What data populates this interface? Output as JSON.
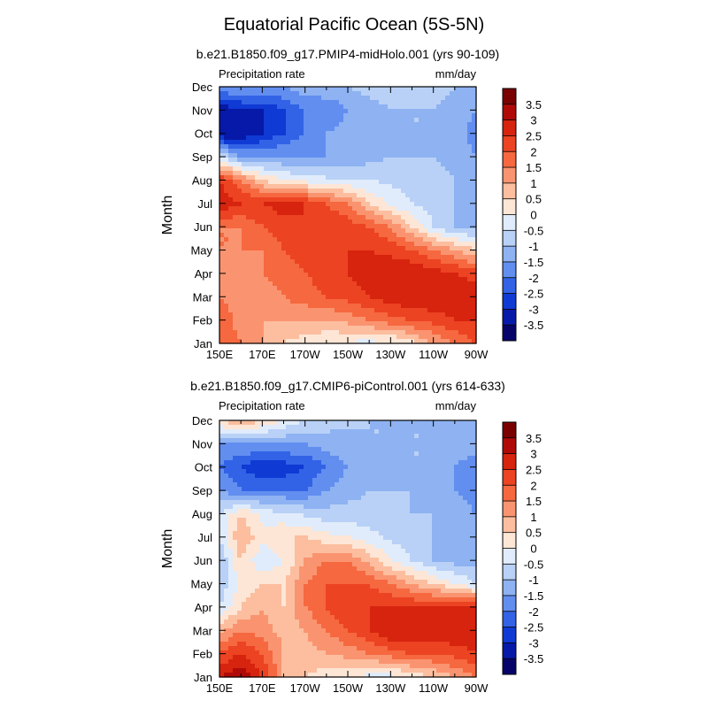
{
  "figure": {
    "title": "Equatorial Pacific Ocean (5S-5N)"
  },
  "chart_data": [
    {
      "type": "heatmap",
      "title": "b.e21.B1850.f09_g17.PMIP4-midHolo.001 (yrs 90-109)",
      "left_label": "Precipitation rate",
      "right_label": "mm/day",
      "xlabel": "",
      "ylabel": "Month",
      "x_ticks": [
        "150E",
        "170E",
        "170W",
        "150W",
        "130W",
        "110W",
        "90W"
      ],
      "y_ticks": [
        "Jan",
        "Feb",
        "Mar",
        "Apr",
        "May",
        "Jun",
        "Jul",
        "Aug",
        "Sep",
        "Oct",
        "Nov",
        "Dec"
      ],
      "x_values_degE": [
        150,
        160,
        170,
        180,
        190,
        200,
        210,
        220,
        230,
        240,
        250,
        260,
        270
      ],
      "y_values": [
        "Jan",
        "Feb",
        "Mar",
        "Apr",
        "May",
        "Jun",
        "Jul",
        "Aug",
        "Sep",
        "Oct",
        "Nov",
        "Dec"
      ],
      "z_mm_day": [
        [
          2.0,
          1.5,
          1.0,
          0.5,
          0.2,
          0.0,
          -0.1,
          -0.2,
          -0.1,
          0.3,
          1.0,
          1.5,
          2.0
        ],
        [
          2.0,
          1.2,
          1.0,
          1.0,
          1.0,
          1.0,
          1.2,
          1.5,
          1.8,
          2.0,
          2.2,
          2.5,
          2.5
        ],
        [
          1.5,
          1.0,
          1.0,
          1.5,
          1.8,
          2.0,
          2.2,
          2.5,
          2.8,
          3.0,
          3.0,
          3.0,
          2.8
        ],
        [
          1.0,
          1.2,
          1.5,
          1.8,
          2.0,
          2.2,
          2.5,
          2.8,
          3.0,
          3.0,
          2.8,
          2.5,
          2.3
        ],
        [
          1.5,
          1.5,
          1.5,
          2.0,
          2.2,
          2.5,
          2.5,
          2.5,
          2.3,
          2.0,
          1.5,
          1.0,
          0.5
        ],
        [
          1.5,
          1.5,
          2.0,
          2.2,
          2.5,
          2.5,
          2.3,
          2.0,
          1.5,
          0.5,
          -0.5,
          -1.0,
          -1.2
        ],
        [
          3.0,
          2.5,
          2.5,
          2.8,
          2.5,
          2.0,
          1.5,
          0.5,
          -0.2,
          -0.5,
          -0.8,
          -1.0,
          -1.2
        ],
        [
          2.5,
          1.5,
          0.5,
          0.0,
          -0.2,
          -0.4,
          -0.5,
          -0.5,
          -0.6,
          -0.7,
          -0.8,
          -1.0,
          -1.2
        ],
        [
          -0.5,
          -1.5,
          -1.5,
          -1.5,
          -1.5,
          -1.5,
          -1.5,
          -1.2,
          -1.0,
          -1.0,
          -1.0,
          -1.2,
          -1.5
        ],
        [
          -3.5,
          -3.5,
          -3.0,
          -2.5,
          -2.0,
          -1.5,
          -1.2,
          -1.0,
          -1.0,
          -1.0,
          -1.0,
          -1.2,
          -1.8
        ],
        [
          -3.5,
          -3.0,
          -3.0,
          -2.5,
          -2.0,
          -2.0,
          -1.5,
          -1.2,
          -1.0,
          -1.0,
          -1.0,
          -1.2,
          -1.5
        ],
        [
          -1.5,
          -1.5,
          -1.5,
          -1.5,
          -1.2,
          -1.0,
          -1.0,
          -0.8,
          -0.8,
          -0.8,
          -0.8,
          -1.0,
          -1.0
        ]
      ]
    },
    {
      "type": "heatmap",
      "title": "b.e21.B1850.f09_g17.CMIP6-piControl.001 (yrs 614-633)",
      "left_label": "Precipitation rate",
      "right_label": "mm/day",
      "xlabel": "",
      "ylabel": "Month",
      "x_ticks": [
        "150E",
        "170E",
        "170W",
        "150W",
        "130W",
        "110W",
        "90W"
      ],
      "y_ticks": [
        "Jan",
        "Feb",
        "Mar",
        "Apr",
        "May",
        "Jun",
        "Jul",
        "Aug",
        "Sep",
        "Oct",
        "Nov",
        "Dec"
      ],
      "x_values_degE": [
        150,
        160,
        170,
        180,
        190,
        200,
        210,
        220,
        230,
        240,
        250,
        260,
        270
      ],
      "y_values": [
        "Jan",
        "Feb",
        "Mar",
        "Apr",
        "May",
        "Jun",
        "Jul",
        "Aug",
        "Sep",
        "Oct",
        "Nov",
        "Dec"
      ],
      "z_mm_day": [
        [
          3.0,
          3.5,
          2.5,
          1.0,
          0.5,
          0.2,
          0.0,
          -0.2,
          -0.2,
          0.2,
          0.5,
          1.0,
          1.5
        ],
        [
          2.0,
          2.5,
          2.0,
          1.0,
          0.8,
          1.0,
          1.2,
          1.5,
          1.8,
          2.0,
          2.0,
          2.2,
          2.5
        ],
        [
          0.8,
          1.5,
          1.2,
          0.8,
          1.0,
          1.5,
          2.0,
          2.5,
          3.0,
          3.0,
          3.0,
          3.0,
          3.0
        ],
        [
          -0.5,
          0.5,
          1.0,
          0.5,
          1.5,
          2.0,
          2.5,
          2.5,
          2.5,
          2.5,
          2.5,
          2.5,
          2.5
        ],
        [
          -1.0,
          0.2,
          0.5,
          0.5,
          1.5,
          2.0,
          2.0,
          2.0,
          1.5,
          1.0,
          0.5,
          0.0,
          -0.5
        ],
        [
          -1.0,
          0.5,
          -0.5,
          0.0,
          1.0,
          1.5,
          1.5,
          0.8,
          0.0,
          -0.5,
          -1.0,
          -1.2,
          -1.2
        ],
        [
          -0.5,
          1.0,
          0.2,
          0.5,
          0.5,
          0.2,
          0.0,
          -0.3,
          -0.6,
          -0.8,
          -1.0,
          -1.2,
          -1.3
        ],
        [
          -0.5,
          0.5,
          -0.2,
          -0.4,
          -0.6,
          -0.8,
          -0.8,
          -0.8,
          -0.9,
          -1.0,
          -1.0,
          -1.2,
          -1.5
        ],
        [
          -1.5,
          -2.0,
          -2.0,
          -2.0,
          -2.0,
          -1.5,
          -1.2,
          -1.0,
          -1.0,
          -1.0,
          -1.0,
          -1.5,
          -1.8
        ],
        [
          -2.0,
          -2.5,
          -3.0,
          -2.8,
          -2.5,
          -2.0,
          -1.5,
          -1.2,
          -1.0,
          -1.0,
          -1.0,
          -1.5,
          -1.8
        ],
        [
          -1.5,
          -1.5,
          -1.5,
          -1.5,
          -1.5,
          -1.2,
          -1.2,
          -1.0,
          -1.0,
          -1.0,
          -1.0,
          -1.2,
          -1.2
        ],
        [
          0.5,
          1.0,
          0.5,
          0.0,
          -0.5,
          -0.8,
          -0.9,
          -1.0,
          -1.0,
          -1.0,
          -1.0,
          -1.0,
          -1.0
        ]
      ]
    }
  ],
  "colorbar": {
    "tick_labels": [
      "3.5",
      "3",
      "2.5",
      "2",
      "1.5",
      "1",
      "0.5",
      "0",
      "-0.5",
      "-1",
      "-1.5",
      "-2",
      "-2.5",
      "-3",
      "-3.5"
    ],
    "levels": [
      3.5,
      3,
      2.5,
      2,
      1.5,
      1,
      0.5,
      0,
      -0.5,
      -1,
      -1.5,
      -2,
      -2.5,
      -3,
      -3.5
    ],
    "colors_top_to_bottom": [
      "#7a0000",
      "#b00a08",
      "#d7240e",
      "#ec4322",
      "#f6683f",
      "#fa9470",
      "#fcbe9f",
      "#fde6d6",
      "#e0ecfb",
      "#b9d1f7",
      "#8eb2f2",
      "#628ef0",
      "#3263e6",
      "#0f3ad4",
      "#0719a8",
      "#06046b"
    ]
  }
}
